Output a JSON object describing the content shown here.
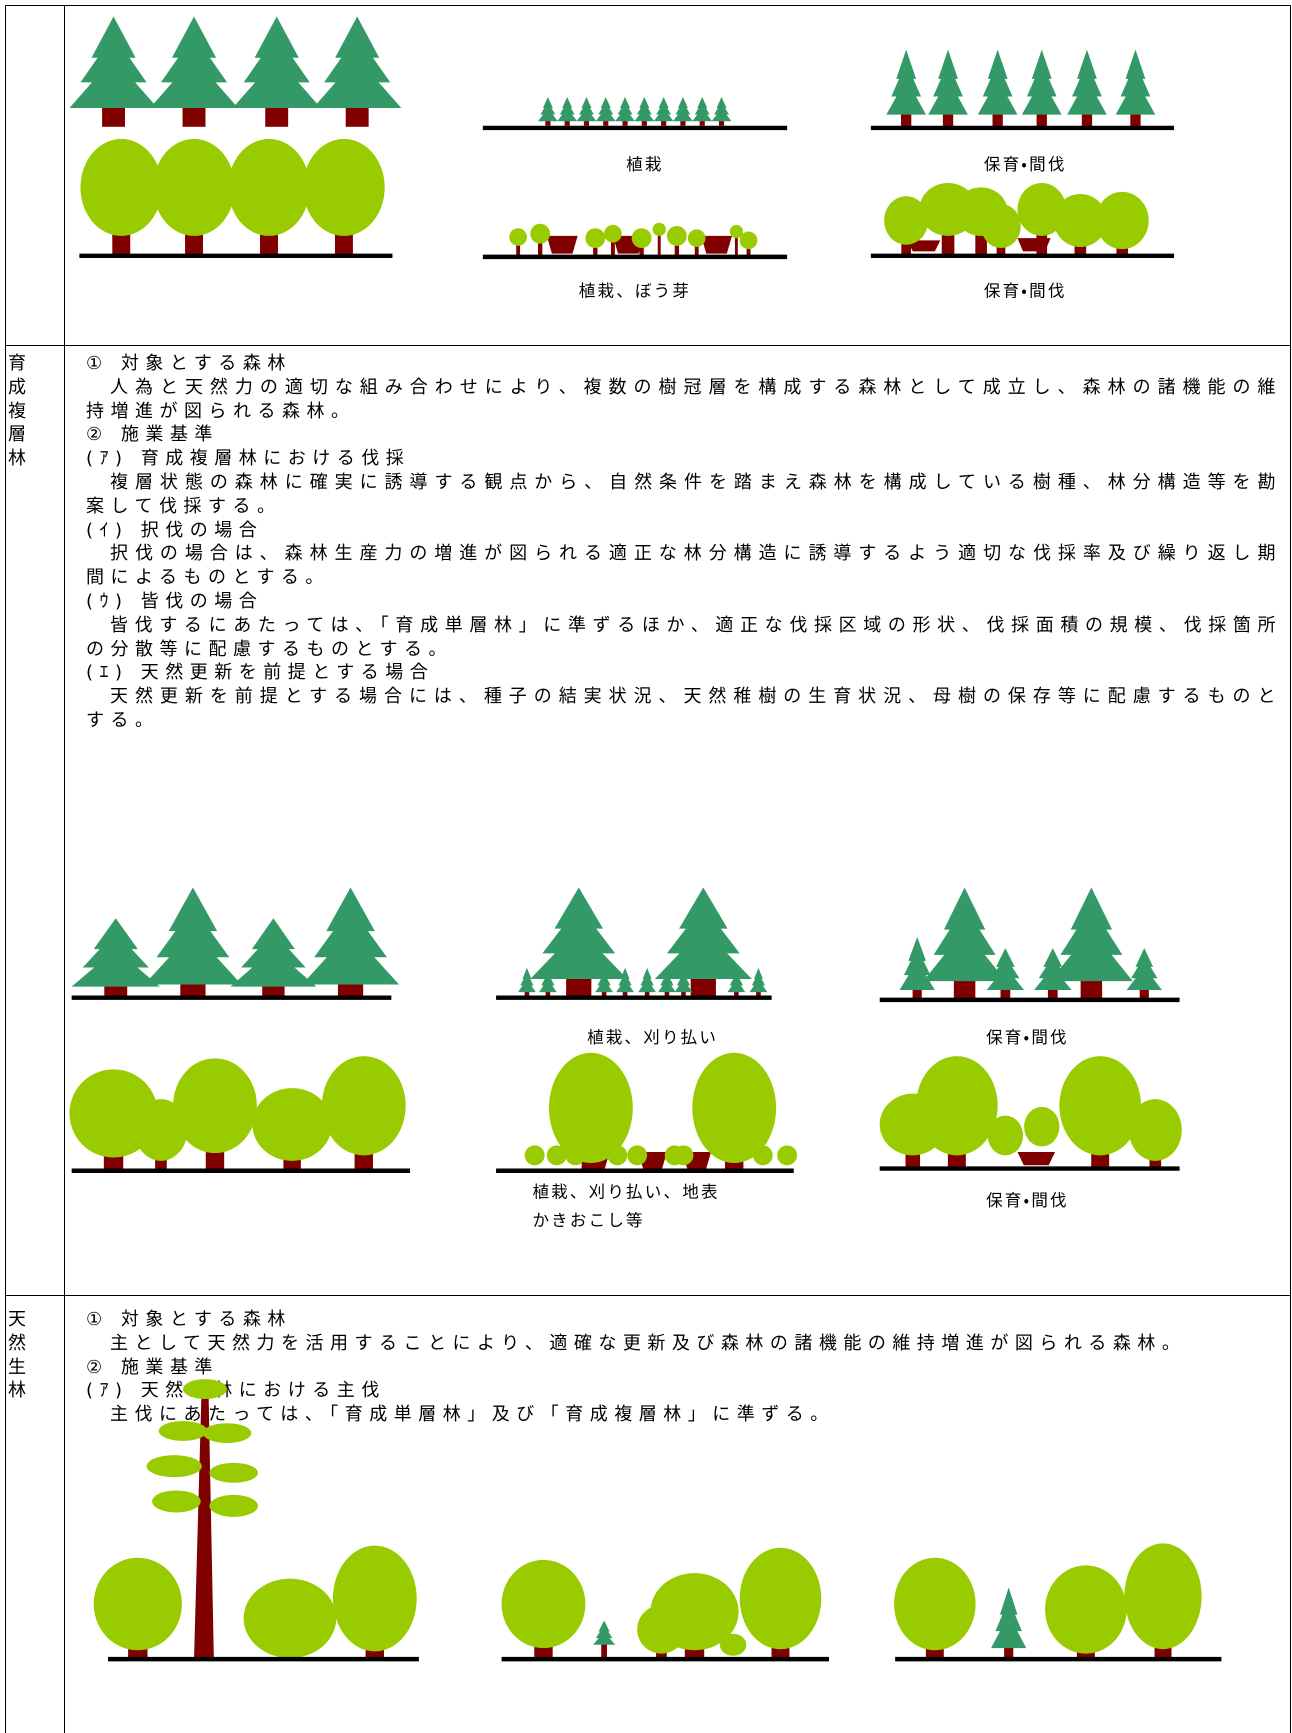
{
  "rows": [
    {
      "captions": [
        [
          "植栽"
        ],
        [
          "保育・間伐"
        ],
        [
          "植栽、ぼう芽"
        ],
        [
          "保育・間伐"
        ]
      ]
    },
    {
      "label": "育成複層林",
      "items": [
        {
          "heading": "① 対象とする森林",
          "text": "人為と天然力の適切な組み合わせにより、複数の樹冠層を構成する森林として成立し、森林の諸機能の維持増進が図られる森林。"
        },
        {
          "heading": "② 施業基準"
        },
        {
          "heading": "(ｱ) 育成複層林における伐採",
          "text": "複層状態の森林に確実に誘導する観点から、自然条件を踏まえ森林を構成している樹種、林分構造等を勘案して伐採する。"
        },
        {
          "heading": "(ｲ) 択伐の場合",
          "text": "択伐の場合は、森林生産力の増進が図られる適正な林分構造に誘導するよう適切な伐採率及び繰り返し期間によるものとする。"
        },
        {
          "heading": "(ｳ) 皆伐の場合",
          "text": "皆伐するにあたっては、「育成単層林」に準ずるほか、適正な伐採区域の形状、伐採面積の規模、伐採箇所の分散等に配慮するものとする。"
        },
        {
          "heading": "(ｴ) 天然更新を前提とする場合",
          "text": "天然更新を前提とする場合には、種子の結実状況、天然稚樹の生育状況、母樹の保存等に配慮するものとする。"
        }
      ],
      "captions": [
        [
          "植栽、刈り払い"
        ],
        [
          "保育・間伐"
        ],
        [
          "植栽、刈り払い、地表",
          "かきおこし等"
        ],
        [
          "保育・間伐"
        ]
      ]
    },
    {
      "label": "天然生林",
      "items": [
        {
          "heading": "① 対象とする森林",
          "text": "主として天然力を活用することにより、適確な更新及び森林の諸機能の維持増進が図られる森林。"
        },
        {
          "heading": "② 施業基準"
        },
        {
          "heading": "(ｱ) 天然生林における主伐",
          "text": "主伐にあたっては、「育成単層林」及び「育成複層林」に準ずる。"
        }
      ]
    }
  ]
}
